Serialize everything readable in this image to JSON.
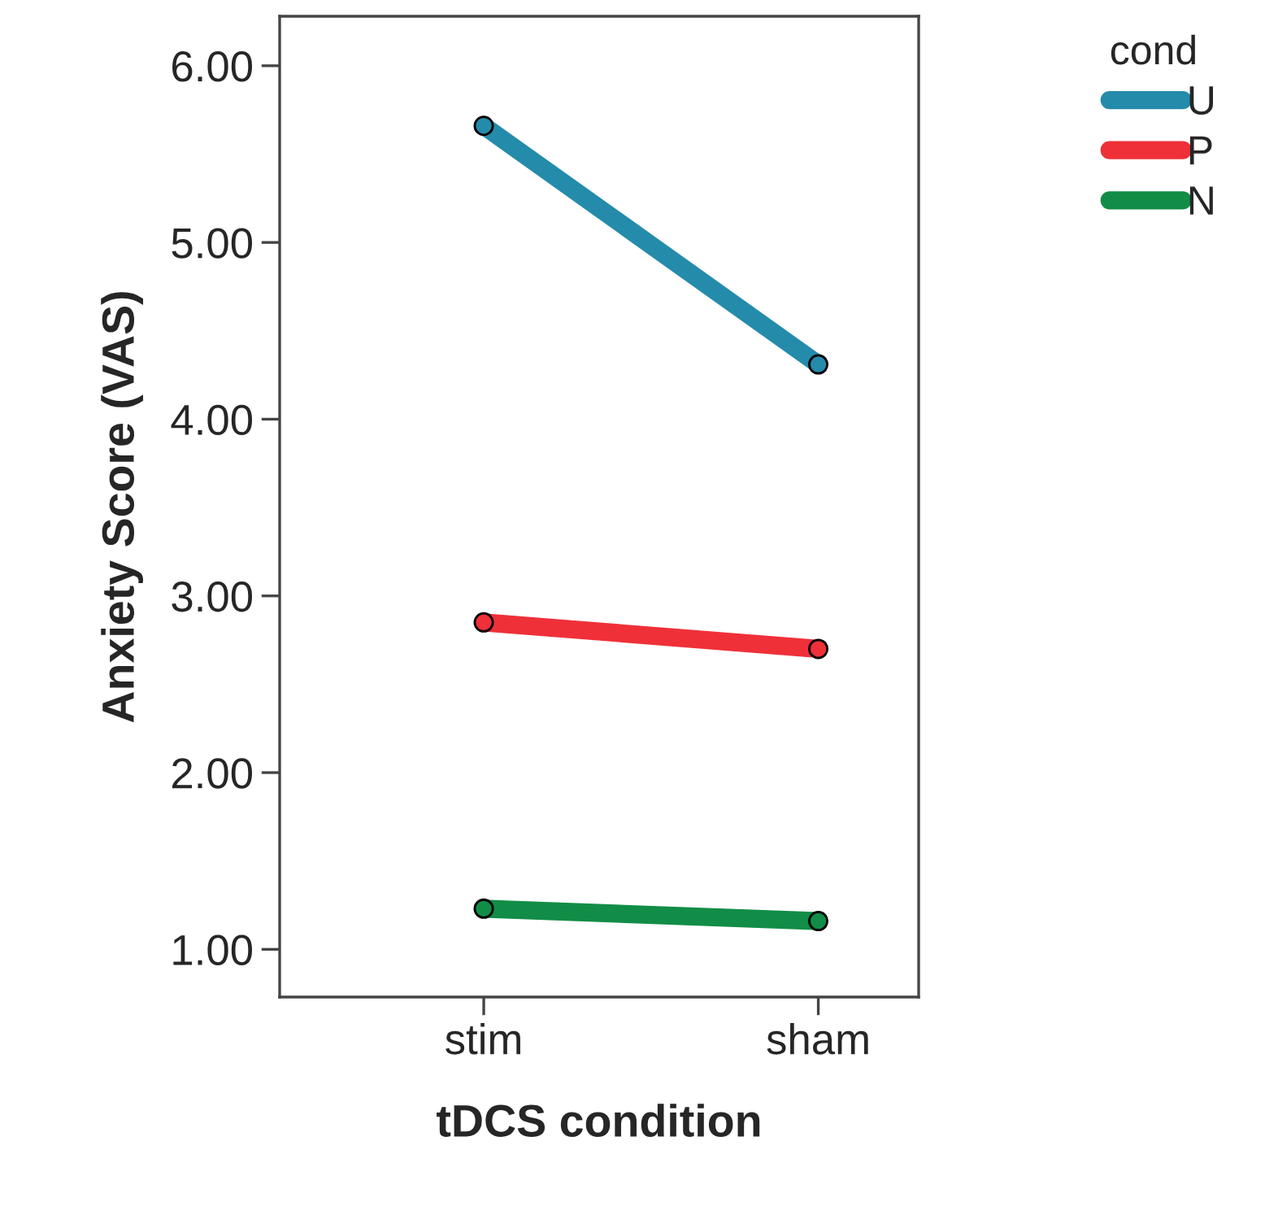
{
  "chart_data": {
    "type": "line",
    "xlabel": "tDCS condition",
    "ylabel": "Anxiety Score (VAS)",
    "legend_title": "cond",
    "categories": [
      "stim",
      "sham"
    ],
    "series": [
      {
        "name": "U",
        "color": "#248bab",
        "values": [
          5.66,
          4.31
        ]
      },
      {
        "name": "P",
        "color": "#ef3038",
        "values": [
          2.85,
          2.7
        ]
      },
      {
        "name": "N",
        "color": "#118d47",
        "values": [
          1.23,
          1.16
        ]
      }
    ],
    "ylim": [
      0.73,
      6.28
    ],
    "yticks": [
      {
        "value": 1,
        "label": "1.00"
      },
      {
        "value": 2,
        "label": "2.00"
      },
      {
        "value": 3,
        "label": "3.00"
      },
      {
        "value": 4,
        "label": "4.00"
      },
      {
        "value": 5,
        "label": "5.00"
      },
      {
        "value": 6,
        "label": "6.00"
      }
    ],
    "grid": false,
    "legend": "top right",
    "marker": "circle",
    "line_style": "solid"
  }
}
